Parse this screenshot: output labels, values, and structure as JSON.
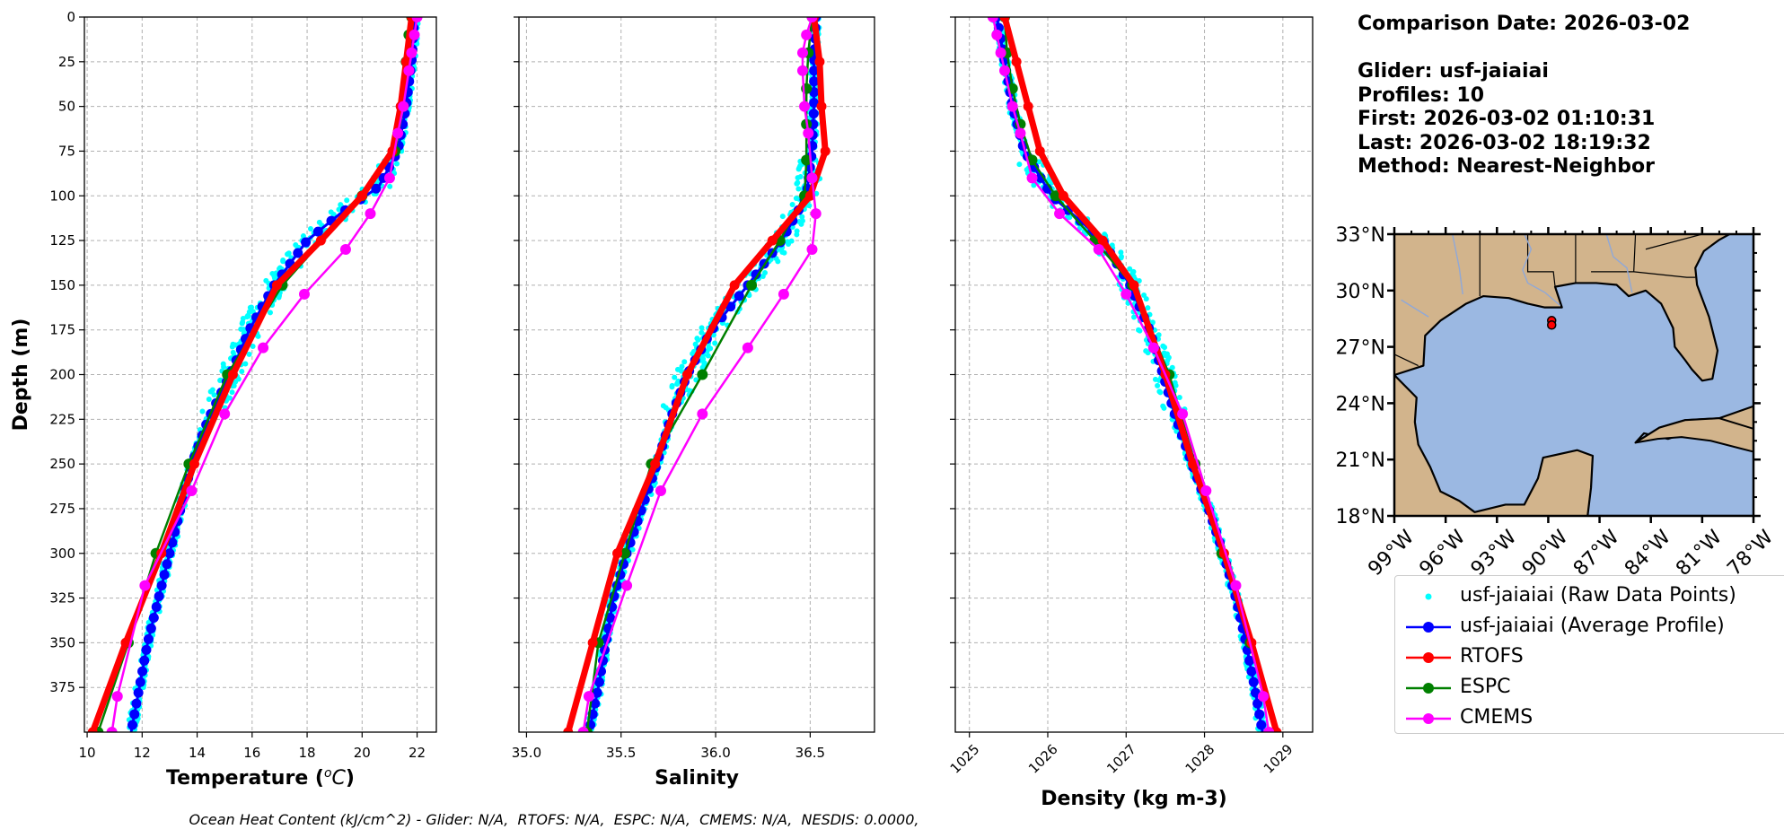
{
  "info": {
    "comparison_date": "Comparison Date: 2026-03-02",
    "glider": "Glider: usf-jaiaiai",
    "profiles": "Profiles: 10",
    "first": "First: 2026-03-02 01:10:31",
    "last": "Last: 2026-03-02 18:19:32",
    "method": "Method: Nearest-Neighbor"
  },
  "footer": "Ocean Heat Content (kJ/cm^2) - Glider: N/A,  RTOFS: N/A,  ESPC: N/A,  CMEMS: N/A,  NESDIS: 0.0000,",
  "colors": {
    "raw": "#00ffff",
    "glider_avg": "#0000ff",
    "rtofs": "#ff0000",
    "espc": "#008000",
    "cmems": "#ff00ff",
    "land": "#d2b48c",
    "ocean": "#9bb8e2",
    "grid": "#b0b0b0"
  },
  "legend": [
    {
      "label": "usf-jaiaiai (Raw Data Points)",
      "color": "#00ffff",
      "style": "dot"
    },
    {
      "label": "usf-jaiaiai (Average Profile)",
      "color": "#0000ff",
      "style": "line-marker"
    },
    {
      "label": "RTOFS",
      "color": "#ff0000",
      "style": "line-marker"
    },
    {
      "label": "ESPC",
      "color": "#008000",
      "style": "line-marker"
    },
    {
      "label": "CMEMS",
      "color": "#ff00ff",
      "style": "line-marker"
    }
  ],
  "map": {
    "lat_ticks": [
      "33°N",
      "30°N",
      "27°N",
      "24°N",
      "21°N",
      "18°N"
    ],
    "lon_ticks": [
      "99°W",
      "96°W",
      "93°W",
      "90°W",
      "87°W",
      "84°W",
      "81°W",
      "78°W"
    ],
    "extent": {
      "lon": [
        -99,
        -78
      ],
      "lat": [
        18,
        33
      ]
    },
    "glider_location": {
      "lon": -89.8,
      "lat": 28.4
    }
  },
  "chart_data": [
    {
      "type": "line",
      "title": "",
      "xlabel": "Temperature (°C)",
      "ylabel": "Depth (m)",
      "xlim": [
        9.9,
        22.7
      ],
      "ylim": [
        400,
        0
      ],
      "x_ticks": [
        "10",
        "12",
        "14",
        "16",
        "18",
        "20",
        "22"
      ],
      "y_ticks": [
        "0",
        "25",
        "50",
        "75",
        "100",
        "125",
        "150",
        "175",
        "200",
        "225",
        "250",
        "275",
        "300",
        "325",
        "350",
        "375"
      ],
      "grid": true,
      "series": [
        {
          "name": "usf-jaiaiai (Average Profile)",
          "depth": [
            0,
            25,
            50,
            75,
            95,
            110,
            125,
            150,
            175,
            200,
            225,
            250,
            275,
            300,
            325,
            350,
            375,
            400
          ],
          "values": [
            21.9,
            21.8,
            21.6,
            21.3,
            20.6,
            19.2,
            18.0,
            16.8,
            15.9,
            15.2,
            14.4,
            13.8,
            13.4,
            13.0,
            12.6,
            12.2,
            11.9,
            11.6
          ]
        },
        {
          "name": "RTOFS",
          "depth": [
            0,
            25,
            50,
            75,
            100,
            125,
            150,
            200,
            250,
            300,
            350,
            400
          ],
          "values": [
            21.8,
            21.6,
            21.4,
            21.1,
            20.0,
            18.5,
            16.9,
            15.3,
            13.9,
            12.7,
            11.4,
            10.2
          ]
        },
        {
          "name": "ESPC",
          "depth": [
            0,
            10,
            25,
            50,
            75,
            100,
            150,
            200,
            250,
            300,
            350,
            400
          ],
          "values": [
            21.8,
            21.7,
            21.6,
            21.5,
            21.2,
            20.0,
            17.1,
            15.1,
            13.7,
            12.5,
            11.5,
            10.4
          ]
        },
        {
          "name": "CMEMS",
          "depth": [
            0,
            10,
            20,
            30,
            50,
            65,
            90,
            110,
            130,
            155,
            185,
            222,
            265,
            318,
            380,
            400
          ],
          "values": [
            22.0,
            21.9,
            21.8,
            21.7,
            21.5,
            21.3,
            21.0,
            20.3,
            19.4,
            17.9,
            16.4,
            15.0,
            13.8,
            12.1,
            11.1,
            10.9
          ]
        }
      ],
      "raw_points_note": "usf-jaiaiai (Raw Data Points)"
    },
    {
      "type": "line",
      "title": "",
      "xlabel": "Salinity",
      "ylabel": "",
      "xlim": [
        34.96,
        36.84
      ],
      "ylim": [
        400,
        0
      ],
      "x_ticks": [
        "35.0",
        "35.5",
        "36.0",
        "36.5"
      ],
      "grid": true,
      "series": [
        {
          "name": "usf-jaiaiai (Average Profile)",
          "depth": [
            0,
            25,
            50,
            75,
            100,
            125,
            150,
            175,
            200,
            225,
            250,
            275,
            300,
            325,
            350,
            375,
            400
          ],
          "values": [
            36.53,
            36.52,
            36.52,
            36.51,
            36.48,
            36.35,
            36.17,
            35.98,
            35.85,
            35.76,
            35.69,
            35.61,
            35.53,
            35.46,
            35.42,
            35.38,
            35.33
          ]
        },
        {
          "name": "RTOFS",
          "depth": [
            0,
            25,
            50,
            75,
            100,
            125,
            150,
            200,
            250,
            300,
            350,
            400
          ],
          "values": [
            36.52,
            36.55,
            36.56,
            36.58,
            36.5,
            36.3,
            36.1,
            35.85,
            35.68,
            35.48,
            35.35,
            35.22
          ]
        },
        {
          "name": "ESPC",
          "depth": [
            0,
            20,
            40,
            60,
            80,
            100,
            125,
            150,
            200,
            250,
            300,
            350,
            400
          ],
          "values": [
            36.51,
            36.49,
            36.48,
            36.48,
            36.48,
            36.47,
            36.34,
            36.19,
            35.93,
            35.66,
            35.52,
            35.38,
            35.32
          ]
        },
        {
          "name": "CMEMS",
          "depth": [
            0,
            10,
            20,
            30,
            50,
            65,
            90,
            110,
            130,
            155,
            185,
            222,
            265,
            318,
            380,
            400
          ],
          "values": [
            36.51,
            36.48,
            36.46,
            36.46,
            36.47,
            36.49,
            36.51,
            36.53,
            36.51,
            36.36,
            36.17,
            35.93,
            35.71,
            35.53,
            35.33,
            35.3
          ]
        }
      ],
      "raw_points_note": "usf-jaiaiai (Raw Data Points)"
    },
    {
      "type": "line",
      "title": "",
      "xlabel": "Density (kg m-3)",
      "ylabel": "",
      "xlim": [
        1024.82,
        1029.38
      ],
      "ylim": [
        400,
        0
      ],
      "x_ticks": [
        "1025",
        "1026",
        "1027",
        "1028",
        "1029"
      ],
      "grid": true,
      "series": [
        {
          "name": "usf-jaiaiai (Average Profile)",
          "depth": [
            0,
            25,
            50,
            75,
            100,
            125,
            150,
            175,
            200,
            225,
            250,
            275,
            300,
            325,
            350,
            375,
            400
          ],
          "values": [
            1025.35,
            1025.45,
            1025.55,
            1025.7,
            1026.05,
            1026.7,
            1027.05,
            1027.3,
            1027.47,
            1027.64,
            1027.84,
            1028.05,
            1028.24,
            1028.4,
            1028.53,
            1028.64,
            1028.74
          ]
        },
        {
          "name": "RTOFS",
          "depth": [
            0,
            25,
            50,
            75,
            100,
            125,
            150,
            200,
            250,
            300,
            350,
            400
          ],
          "values": [
            1025.45,
            1025.6,
            1025.75,
            1025.9,
            1026.2,
            1026.7,
            1027.1,
            1027.5,
            1027.85,
            1028.25,
            1028.6,
            1028.92
          ]
        },
        {
          "name": "ESPC",
          "depth": [
            0,
            20,
            40,
            60,
            80,
            100,
            125,
            150,
            200,
            250,
            300,
            350,
            400
          ],
          "values": [
            1025.45,
            1025.48,
            1025.55,
            1025.65,
            1025.8,
            1026.1,
            1026.6,
            1027.08,
            1027.55,
            1027.88,
            1028.22,
            1028.58,
            1028.9
          ]
        },
        {
          "name": "CMEMS",
          "depth": [
            0,
            10,
            20,
            30,
            50,
            65,
            90,
            110,
            130,
            155,
            185,
            222,
            265,
            318,
            380,
            400
          ],
          "values": [
            1025.3,
            1025.35,
            1025.4,
            1025.45,
            1025.55,
            1025.65,
            1025.8,
            1026.15,
            1026.65,
            1027.0,
            1027.35,
            1027.72,
            1028.02,
            1028.4,
            1028.75,
            1028.82
          ]
        }
      ],
      "raw_points_note": "usf-jaiaiai (Raw Data Points)"
    }
  ]
}
